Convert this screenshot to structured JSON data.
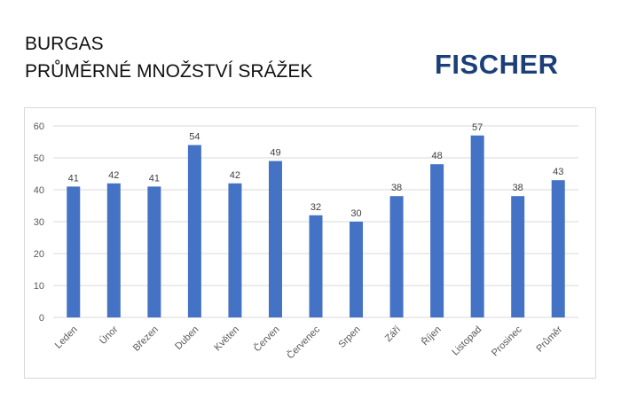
{
  "header": {
    "title_line1": "BURGAS",
    "title_line2": "PRŮMĚRNÉ MNOŽSTVÍ SRÁŽEK"
  },
  "logo": {
    "text": "FISCHER",
    "color": "#1c3f7a"
  },
  "chart_data": {
    "type": "bar",
    "categories": [
      "Leden",
      "Únor",
      "Březen",
      "Duben",
      "Květen",
      "Červen",
      "Červenec",
      "Srpen",
      "Září",
      "Říjen",
      "Listopad",
      "Prosinec",
      "Průměr"
    ],
    "values": [
      41,
      42,
      41,
      54,
      42,
      49,
      32,
      30,
      38,
      48,
      57,
      38,
      43
    ],
    "data_labels": [
      "41",
      "42",
      "41",
      "54",
      "42",
      "49",
      "32",
      "30",
      "38",
      "48",
      "57",
      "38",
      "43"
    ],
    "title": "",
    "xlabel": "",
    "ylabel": "",
    "ylim": [
      0,
      60
    ],
    "yticks": [
      0,
      10,
      20,
      30,
      40,
      50,
      60
    ],
    "grid": true,
    "legend": "none",
    "bar_color": "#4472c4"
  }
}
